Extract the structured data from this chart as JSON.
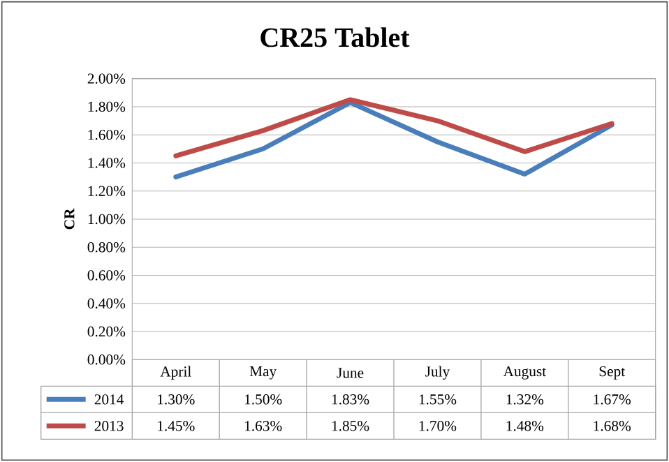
{
  "chart_data": {
    "type": "line",
    "title": "CR25 Tablet",
    "ylabel": "CR",
    "categories": [
      "April",
      "May",
      "June",
      "July",
      "August",
      "Sept"
    ],
    "series": [
      {
        "name": "2014",
        "color": "#4a7ebb",
        "values": [
          1.3,
          1.5,
          1.83,
          1.55,
          1.32,
          1.67
        ],
        "value_labels": [
          "1.30%",
          "1.50%",
          "1.83%",
          "1.55%",
          "1.32%",
          "1.67%"
        ]
      },
      {
        "name": "2013",
        "color": "#be4b48",
        "values": [
          1.45,
          1.63,
          1.85,
          1.7,
          1.48,
          1.68
        ],
        "value_labels": [
          "1.45%",
          "1.63%",
          "1.85%",
          "1.70%",
          "1.48%",
          "1.68%"
        ]
      }
    ],
    "ylim": [
      0,
      2
    ],
    "yticks": [
      {
        "value": 0,
        "label": "0.00%"
      },
      {
        "value": 0.2,
        "label": "0.20%"
      },
      {
        "value": 0.4,
        "label": "0.40%"
      },
      {
        "value": 0.6,
        "label": "0.60%"
      },
      {
        "value": 0.8,
        "label": "0.80%"
      },
      {
        "value": 1.0,
        "label": "1.00%"
      },
      {
        "value": 1.2,
        "label": "1.20%"
      },
      {
        "value": 1.4,
        "label": "1.40%"
      },
      {
        "value": 1.6,
        "label": "1.60%"
      },
      {
        "value": 1.8,
        "label": "1.80%"
      },
      {
        "value": 2.0,
        "label": "2.00%"
      }
    ],
    "grid": "y",
    "legend": "bottom",
    "marker": "none",
    "line_style": "solid"
  }
}
